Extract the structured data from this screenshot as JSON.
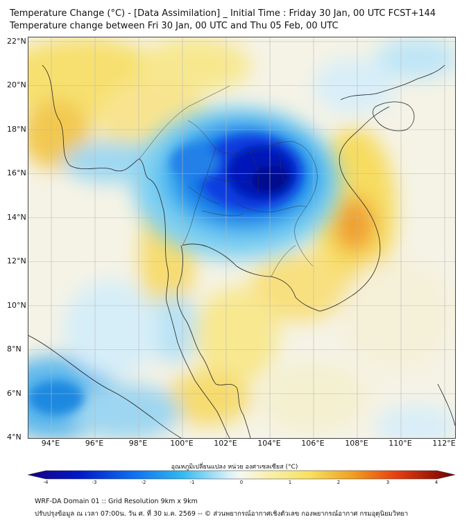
{
  "header": {
    "title_line1": "Temperature Change (°C) - [Data Assimilation] _ Initial Time : Friday 30 Jan, 00 UTC FCST+144",
    "title_line2": "Temperature change between Fri 30 Jan, 00 UTC and Thu 05 Feb, 00 UTC"
  },
  "map": {
    "region": "Mainland Southeast Asia",
    "lat_ticks": [
      "22°N",
      "20°N",
      "18°N",
      "16°N",
      "14°N",
      "12°N",
      "10°N",
      "8°N",
      "6°N",
      "4°N"
    ],
    "lon_ticks": [
      "94°E",
      "96°E",
      "98°E",
      "100°E",
      "102°E",
      "104°E",
      "106°E",
      "108°E",
      "110°E",
      "112°E"
    ],
    "lon_range": [
      93.0,
      112.5
    ],
    "lat_range": [
      4.0,
      22.2
    ],
    "gridlines": true
  },
  "colorbar": {
    "label": "อุณหภูมิเปลี่ยนแปลง หน่วย องศาเซลเซียส (°C)",
    "range": [
      -4,
      4
    ],
    "ticks": [
      "-4",
      "-3",
      "-2",
      "-1",
      "0",
      "1",
      "2",
      "3",
      "4"
    ],
    "colors": {
      "cold_extreme": "#1a0080",
      "cold": "#0030e0",
      "cool": "#30b8f0",
      "neutral": "#f4f4ea",
      "warm": "#f8e060",
      "hot": "#f08a18",
      "hot_extreme": "#c00000"
    }
  },
  "footer": {
    "line1": "WRF-DA Domain 01 :: Grid Resolution 9km x 9km",
    "line2": "ปรับปรุงข้อมูล ณ เวลา 07:00น. วัน ศ. ที่ 30 ม.ค. 2569 -- © ส่วนพยากรณ์อากาศเชิงตัวเลข กองพยากรณ์อากาศ กรมอุตุนิยมวิทยา"
  }
}
